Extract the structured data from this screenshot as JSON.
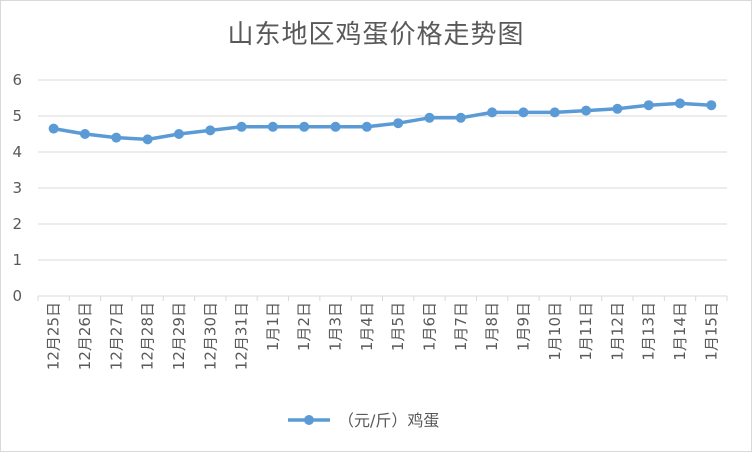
{
  "chart_data": {
    "type": "line",
    "title": "山东地区鸡蛋价格走势图",
    "categories": [
      "12月25日",
      "12月26日",
      "12月27日",
      "12月28日",
      "12月29日",
      "12月30日",
      "12月31日",
      "1月1日",
      "1月2日",
      "1月3日",
      "1月4日",
      "1月5日",
      "1月6日",
      "1月7日",
      "1月8日",
      "1月9日",
      "1月10日",
      "1月11日",
      "1月12日",
      "1月13日",
      "1月14日",
      "1月15日"
    ],
    "series": [
      {
        "name": "（元/斤）鸡蛋",
        "values": [
          4.65,
          4.5,
          4.4,
          4.35,
          4.5,
          4.6,
          4.7,
          4.7,
          4.7,
          4.7,
          4.7,
          4.8,
          4.95,
          4.95,
          5.1,
          5.1,
          5.1,
          5.15,
          5.2,
          5.3,
          5.35,
          5.3
        ],
        "color": "#5b9bd5"
      }
    ],
    "yticks": [
      0,
      1,
      2,
      3,
      4,
      5,
      6
    ],
    "ylim": [
      0,
      6
    ],
    "grid": true,
    "legend_position": "bottom"
  }
}
